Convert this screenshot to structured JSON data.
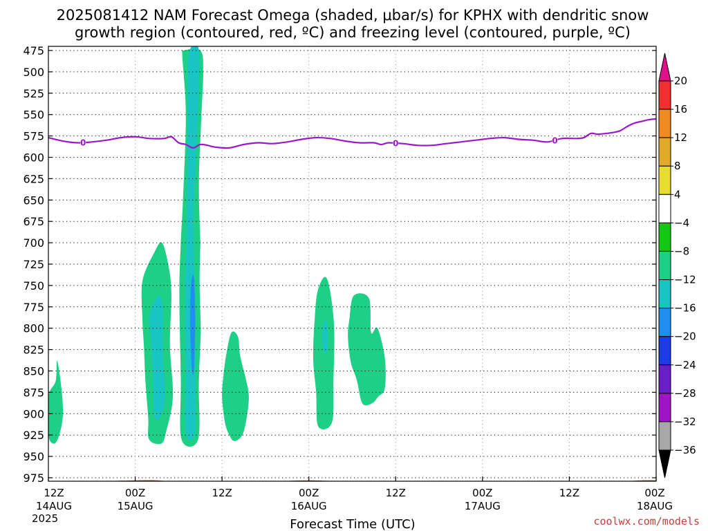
{
  "title": {
    "line1": "2025081412 NAM Forecast Omega (shaded, μbar/s) for KPHX with dendritic snow",
    "line2": "growth region (contoured, red, ºC) and freezing level (contoured, purple, ºC)"
  },
  "credit": "coolwx.com/models",
  "chart_data": {
    "type": "time-height cross section",
    "xlabel": "Forecast Time (UTC)",
    "ylabel": "",
    "x_ticks": [
      {
        "hour": 0,
        "line1": "12Z",
        "line2": "14AUG",
        "line3": "2025"
      },
      {
        "hour": 12,
        "line1": "00Z",
        "line2": "15AUG",
        "line3": ""
      },
      {
        "hour": 24,
        "line1": "12Z",
        "line2": "",
        "line3": ""
      },
      {
        "hour": 36,
        "line1": "00Z",
        "line2": "16AUG",
        "line3": ""
      },
      {
        "hour": 48,
        "line1": "12Z",
        "line2": "",
        "line3": ""
      },
      {
        "hour": 60,
        "line1": "00Z",
        "line2": "17AUG",
        "line3": ""
      },
      {
        "hour": 72,
        "line1": "12Z",
        "line2": "",
        "line3": ""
      },
      {
        "hour": 84,
        "line1": "00Z",
        "line2": "18AUG",
        "line3": ""
      }
    ],
    "xlim_hours": [
      0,
      84
    ],
    "y_ticks": [
      475,
      500,
      525,
      550,
      575,
      600,
      625,
      650,
      675,
      700,
      725,
      750,
      775,
      800,
      825,
      850,
      875,
      900,
      925,
      950,
      975
    ],
    "ylim_hpa": [
      475,
      990
    ],
    "grid": true,
    "colorbar": {
      "labels": [
        "20",
        "16",
        "12",
        "8",
        "4",
        "-4",
        "-8",
        "-12",
        "-16",
        "-20",
        "-24",
        "-28",
        "-32",
        "-36"
      ],
      "bands": [
        {
          "min": 16,
          "max": 20,
          "color": "#f03030"
        },
        {
          "min": 12,
          "max": 16,
          "color": "#f08a20"
        },
        {
          "min": 8,
          "max": 12,
          "color": "#e2aa28"
        },
        {
          "min": 4,
          "max": 8,
          "color": "#e8dc30"
        },
        {
          "min": -4,
          "max": 4,
          "color": "#ffffff"
        },
        {
          "min": -8,
          "max": -4,
          "color": "#12c812"
        },
        {
          "min": -12,
          "max": -8,
          "color": "#1ecf86"
        },
        {
          "min": -16,
          "max": -12,
          "color": "#18c4c4"
        },
        {
          "min": -20,
          "max": -16,
          "color": "#1e8ef0"
        },
        {
          "min": -24,
          "max": -20,
          "color": "#1c3ce6"
        },
        {
          "min": -28,
          "max": -24,
          "color": "#6a1ec8"
        },
        {
          "min": -32,
          "max": -28,
          "color": "#a014c8"
        },
        {
          "min": -36,
          "max": -32,
          "color": "#a8a8a8"
        }
      ],
      "top_arrow_color": "#e0108a",
      "bottom_arrow_color": "#000000"
    },
    "freezing_level": {
      "color": "#9a18c9",
      "contour_value": "0",
      "label_hours": [
        4.8,
        48,
        70
      ],
      "points": [
        [
          0,
          577
        ],
        [
          2,
          581
        ],
        [
          4,
          583
        ],
        [
          6,
          582
        ],
        [
          8,
          580
        ],
        [
          10,
          577
        ],
        [
          12,
          576
        ],
        [
          14,
          578
        ],
        [
          16,
          578
        ],
        [
          17,
          576
        ],
        [
          18,
          583
        ],
        [
          19,
          585
        ],
        [
          20,
          589
        ],
        [
          21,
          585
        ],
        [
          22,
          586
        ],
        [
          23,
          588
        ],
        [
          25,
          589
        ],
        [
          27,
          585
        ],
        [
          29,
          583
        ],
        [
          31,
          584
        ],
        [
          33,
          582
        ],
        [
          35,
          579
        ],
        [
          37,
          577
        ],
        [
          39,
          578
        ],
        [
          41,
          581
        ],
        [
          43,
          583
        ],
        [
          45,
          583
        ],
        [
          46,
          585
        ],
        [
          47,
          583
        ],
        [
          49,
          584
        ],
        [
          51,
          586
        ],
        [
          53,
          586
        ],
        [
          55,
          584
        ],
        [
          57,
          582
        ],
        [
          59,
          580
        ],
        [
          61,
          578
        ],
        [
          63,
          577
        ],
        [
          65,
          579
        ],
        [
          67,
          580
        ],
        [
          69,
          582
        ],
        [
          71,
          578
        ],
        [
          73,
          578
        ],
        [
          74,
          577
        ],
        [
          75,
          572
        ],
        [
          76,
          573
        ],
        [
          78,
          571
        ],
        [
          79,
          569
        ],
        [
          80,
          564
        ],
        [
          81,
          560
        ],
        [
          82,
          558
        ],
        [
          83,
          556
        ],
        [
          84,
          555
        ]
      ]
    },
    "omega_regions": [
      {
        "category": "-8",
        "points": [
          [
            0,
            880
          ],
          [
            1,
            862
          ],
          [
            1.2,
            838
          ],
          [
            1.8,
            870
          ],
          [
            2,
            902
          ],
          [
            1.5,
            925
          ],
          [
            0.8,
            935
          ],
          [
            0,
            925
          ]
        ]
      },
      {
        "category": "-8",
        "points": [
          [
            13,
            745
          ],
          [
            14.6,
            712
          ],
          [
            15.7,
            700
          ],
          [
            16.6,
            727
          ],
          [
            17,
            760
          ],
          [
            16.8,
            820
          ],
          [
            17.2,
            880
          ],
          [
            16.3,
            920
          ],
          [
            15.6,
            935
          ],
          [
            13.9,
            930
          ],
          [
            13.8,
            905
          ],
          [
            13.4,
            860
          ],
          [
            13.2,
            820
          ],
          [
            13,
            790
          ]
        ]
      },
      {
        "category": "-12",
        "points": [
          [
            14,
            785
          ],
          [
            15.2,
            762
          ],
          [
            15.8,
            778
          ],
          [
            15.8,
            830
          ],
          [
            16.1,
            880
          ],
          [
            15.4,
            905
          ],
          [
            14.6,
            900
          ],
          [
            14.4,
            850
          ],
          [
            14.2,
            815
          ]
        ]
      },
      {
        "category": "-8",
        "points": [
          [
            18.6,
            650
          ],
          [
            19,
            550
          ],
          [
            18.5,
            480
          ],
          [
            18.7,
            475
          ],
          [
            21,
            475
          ],
          [
            21.4,
            500
          ],
          [
            21.1,
            560
          ],
          [
            20.8,
            640
          ],
          [
            21.2,
            760
          ],
          [
            20.8,
            860
          ],
          [
            20.7,
            930
          ],
          [
            18.4,
            930
          ],
          [
            18.3,
            860
          ],
          [
            18.1,
            760
          ],
          [
            18.3,
            700
          ]
        ]
      },
      {
        "category": "-12",
        "points": [
          [
            19.3,
            560
          ],
          [
            19.4,
            480
          ],
          [
            20.8,
            475
          ],
          [
            20.6,
            560
          ],
          [
            20.1,
            660
          ],
          [
            20.2,
            760
          ],
          [
            20.3,
            870
          ],
          [
            20.2,
            925
          ],
          [
            19,
            922
          ],
          [
            19,
            860
          ],
          [
            18.9,
            760
          ],
          [
            19.1,
            690
          ]
        ]
      },
      {
        "category": "-16",
        "points": [
          [
            19.7,
            750
          ],
          [
            20.1,
            740
          ],
          [
            20.3,
            790
          ],
          [
            20.1,
            850
          ],
          [
            19.8,
            845
          ],
          [
            19.6,
            795
          ]
        ]
      },
      {
        "category": "4",
        "points": [
          [
            21.2,
            675
          ],
          [
            21.5,
            700
          ],
          [
            21.6,
            750
          ],
          [
            21.8,
            820
          ],
          [
            21.7,
            870
          ],
          [
            21.3,
            915
          ],
          [
            21,
            900
          ],
          [
            21.1,
            820
          ],
          [
            20.9,
            740
          ]
        ]
      },
      {
        "category": "-8",
        "points": [
          [
            24.2,
            855
          ],
          [
            24.6,
            830
          ],
          [
            25.3,
            805
          ],
          [
            26.2,
            810
          ],
          [
            26.5,
            832
          ],
          [
            27.3,
            860
          ],
          [
            27.7,
            880
          ],
          [
            27.4,
            905
          ],
          [
            26.8,
            925
          ],
          [
            25.7,
            932
          ],
          [
            25,
            925
          ],
          [
            24.4,
            910
          ],
          [
            24,
            880
          ]
        ]
      },
      {
        "category": "4",
        "points": [
          [
            38.5,
            678
          ],
          [
            38.9,
            690
          ],
          [
            39,
            720
          ],
          [
            38.6,
            732
          ],
          [
            38.4,
            700
          ]
        ]
      },
      {
        "category": "-8",
        "points": [
          [
            37.2,
            757
          ],
          [
            38.2,
            740
          ],
          [
            38.9,
            755
          ],
          [
            39.5,
            800
          ],
          [
            39.4,
            860
          ],
          [
            39.2,
            910
          ],
          [
            37.3,
            915
          ],
          [
            37,
            875
          ],
          [
            36.6,
            835
          ],
          [
            36.8,
            790
          ]
        ]
      },
      {
        "category": "-12",
        "points": [
          [
            37.9,
            800
          ],
          [
            38.4,
            790
          ],
          [
            38.6,
            820
          ],
          [
            38.3,
            830
          ],
          [
            37.9,
            820
          ]
        ]
      },
      {
        "category": "-8",
        "points": [
          [
            41.6,
            790
          ],
          [
            42.2,
            762
          ],
          [
            44.3,
            765
          ],
          [
            44.6,
            805
          ],
          [
            45.5,
            800
          ],
          [
            46.5,
            835
          ],
          [
            46.5,
            870
          ],
          [
            45.6,
            880
          ],
          [
            44.7,
            888
          ],
          [
            43.4,
            888
          ],
          [
            42.6,
            860
          ],
          [
            41.8,
            840
          ],
          [
            41.4,
            810
          ]
        ]
      },
      {
        "category": "4",
        "points": [
          [
            60.2,
            715
          ],
          [
            60.8,
            684
          ],
          [
            61.4,
            693
          ],
          [
            62,
            710
          ],
          [
            62.6,
            748
          ],
          [
            62.6,
            780
          ],
          [
            61.8,
            772
          ],
          [
            61.3,
            745
          ],
          [
            60.6,
            728
          ]
        ]
      },
      {
        "category": "4",
        "points": [
          [
            79.8,
            860
          ],
          [
            80.4,
            825
          ],
          [
            80.8,
            800
          ],
          [
            81.2,
            768
          ],
          [
            81.8,
            730
          ],
          [
            82.5,
            712
          ],
          [
            83.2,
            720
          ],
          [
            83.5,
            745
          ],
          [
            83.8,
            775
          ],
          [
            83.4,
            835
          ],
          [
            82.8,
            865
          ],
          [
            82,
            880
          ],
          [
            81.2,
            892
          ],
          [
            80.4,
            892
          ],
          [
            79.7,
            885
          ]
        ]
      }
    ],
    "terrain": {
      "color": "#a0522d",
      "top_points": [
        [
          0,
          980
        ],
        [
          5,
          980
        ],
        [
          8,
          979
        ],
        [
          12,
          978
        ],
        [
          15,
          978
        ],
        [
          18,
          980
        ],
        [
          24,
          981
        ],
        [
          28,
          981
        ],
        [
          32,
          979
        ],
        [
          36,
          978
        ],
        [
          40,
          979
        ],
        [
          43,
          980
        ],
        [
          48,
          981
        ],
        [
          54,
          982
        ],
        [
          58,
          980
        ],
        [
          60,
          979
        ],
        [
          64,
          980
        ],
        [
          70,
          981
        ],
        [
          78,
          980
        ],
        [
          80,
          979
        ],
        [
          82,
          978
        ],
        [
          84,
          978
        ]
      ],
      "bottom_hpa": 990
    }
  }
}
